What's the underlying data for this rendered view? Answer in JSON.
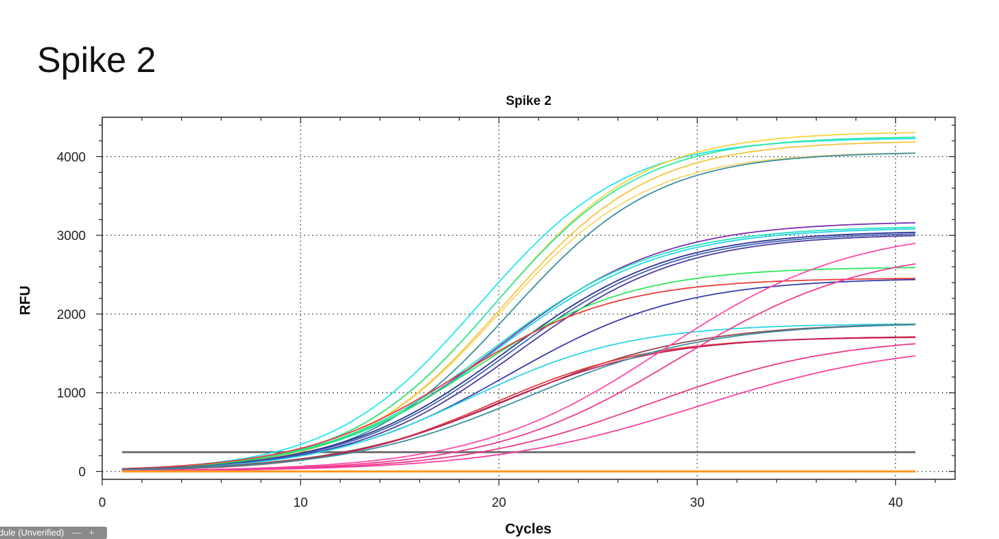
{
  "slide": {
    "title": "Spike 2"
  },
  "footer": {
    "badge_text": "dule (Unverified)",
    "minus_glyph": "—",
    "plus_glyph": "+"
  },
  "chart_data": {
    "type": "line",
    "title": "Spike 2",
    "xlabel": "Cycles",
    "ylabel": "RFU",
    "xlim": [
      0,
      43
    ],
    "ylim": [
      -100,
      4500
    ],
    "xticks": [
      0,
      10,
      20,
      30,
      40
    ],
    "yticks": [
      0,
      1000,
      2000,
      3000,
      4000
    ],
    "grid": "dotted",
    "legend": "none",
    "threshold": {
      "value": 245,
      "color": "#707070"
    },
    "x_cycles": [
      1,
      41
    ],
    "series": [
      {
        "color": "#22e6f2",
        "top": 4240,
        "mid": 19.0,
        "slope": 0.27
      },
      {
        "color": "#f7d33a",
        "top": 4320,
        "mid": 19.9,
        "slope": 0.27
      },
      {
        "color": "#2ee8a6",
        "top": 4260,
        "mid": 19.8,
        "slope": 0.27
      },
      {
        "color": "#f5c53c",
        "top": 4200,
        "mid": 20.2,
        "slope": 0.27
      },
      {
        "color": "#f6d66a",
        "top": 4060,
        "mid": 20.1,
        "slope": 0.27
      },
      {
        "color": "#3a8f9f",
        "top": 4060,
        "mid": 20.6,
        "slope": 0.27
      },
      {
        "color": "#7a2fb0",
        "top": 3180,
        "mid": 20.0,
        "slope": 0.24
      },
      {
        "color": "#24e0c0",
        "top": 3120,
        "mid": 19.7,
        "slope": 0.24
      },
      {
        "color": "#22d6e6",
        "top": 3100,
        "mid": 19.9,
        "slope": 0.24
      },
      {
        "color": "#2a2f8f",
        "top": 3060,
        "mid": 20.4,
        "slope": 0.24
      },
      {
        "color": "#3c60b0",
        "top": 3040,
        "mid": 20.6,
        "slope": 0.24
      },
      {
        "color": "#4a3aa0",
        "top": 3020,
        "mid": 20.9,
        "slope": 0.24
      },
      {
        "color": "#2ee65a",
        "top": 2600,
        "mid": 18.7,
        "slope": 0.25
      },
      {
        "color": "#ea3a3a",
        "top": 2460,
        "mid": 18.0,
        "slope": 0.25
      },
      {
        "color": "#3a3aa8",
        "top": 2460,
        "mid": 20.5,
        "slope": 0.23
      },
      {
        "color": "#2ad6e8",
        "top": 1880,
        "mid": 18.6,
        "slope": 0.25
      },
      {
        "color": "#8a4a4a",
        "top": 1890,
        "mid": 20.8,
        "slope": 0.22
      },
      {
        "color": "#e83a3a",
        "top": 1710,
        "mid": 19.6,
        "slope": 0.25
      },
      {
        "color": "#c01e5a",
        "top": 1720,
        "mid": 19.9,
        "slope": 0.24
      },
      {
        "color": "#3a8f9f",
        "top": 1890,
        "mid": 21.4,
        "slope": 0.22
      },
      {
        "color": "#ff4aa8",
        "top": 3100,
        "mid": 28.3,
        "slope": 0.21
      },
      {
        "color": "#f03a90",
        "top": 2850,
        "mid": 29.0,
        "slope": 0.21
      },
      {
        "color": "#e83a8a",
        "top": 1720,
        "mid": 27.6,
        "slope": 0.21
      },
      {
        "color": "#ff3fa0",
        "top": 1650,
        "mid": 30.0,
        "slope": 0.19
      },
      {
        "color": "#ff8c00",
        "top": 0,
        "mid": 40.0,
        "slope": 0.2
      },
      {
        "color": "#ff9a20",
        "top": 0,
        "mid": 40.0,
        "slope": 0.2
      }
    ]
  }
}
